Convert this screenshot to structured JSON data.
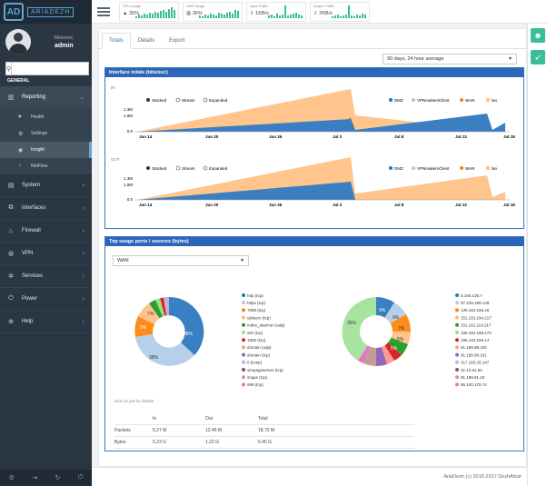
{
  "app": {
    "logo_letters": "AD",
    "logo_text": "ARIADEZH"
  },
  "user": {
    "welcome": "Welcome,",
    "name": "admin"
  },
  "search": {
    "placeholder": "",
    "value": ""
  },
  "sidebar": {
    "section": "GENERAL",
    "items": [
      {
        "label": "Reporting",
        "icon": "chart-icon",
        "chev": "⌄"
      },
      {
        "label": "System",
        "icon": "server-icon",
        "chev": "›"
      },
      {
        "label": "Interfaces",
        "icon": "network-icon",
        "chev": "›"
      },
      {
        "label": "Firewall",
        "icon": "fire-icon",
        "chev": "›"
      },
      {
        "label": "VPN",
        "icon": "globe-icon",
        "chev": "›"
      },
      {
        "label": "Services",
        "icon": "gears-icon",
        "chev": "›"
      },
      {
        "label": "Power",
        "icon": "plug-icon",
        "chev": "›"
      },
      {
        "label": "Help",
        "icon": "lifebuoy-icon",
        "chev": "›"
      }
    ],
    "subitems": [
      {
        "label": "Health"
      },
      {
        "label": "Settings"
      },
      {
        "label": "Insight"
      },
      {
        "label": "NetFlow"
      }
    ]
  },
  "top_stats": [
    {
      "title": "CPU Usage",
      "value": "35%",
      "bars": [
        2,
        4,
        3,
        5,
        4,
        6,
        5,
        7,
        6,
        8,
        9,
        7,
        10,
        12,
        9
      ]
    },
    {
      "title": "RAM Usage",
      "value": "36%",
      "bars": [
        3,
        2,
        4,
        3,
        5,
        4,
        3,
        6,
        5,
        4,
        6,
        7,
        5,
        9,
        8
      ]
    },
    {
      "title": "Input Traffic",
      "value": "1KB/s",
      "bars": [
        3,
        4,
        2,
        5,
        3,
        4,
        14,
        3,
        4,
        5,
        6,
        4,
        3
      ]
    },
    {
      "title": "Output Traffic",
      "value": "2KB/s",
      "bars": [
        2,
        3,
        4,
        2,
        3,
        4,
        14,
        3,
        2,
        4,
        3,
        5,
        4
      ]
    }
  ],
  "tabs": [
    "Totals",
    "Details",
    "Export"
  ],
  "period": {
    "selected": "90 days, 24 hour average"
  },
  "interface_panel": {
    "title": "Interface totals (bits/sec)",
    "in_label": "IN",
    "out_label": "OUT",
    "modes": [
      "Stacked",
      "Stream",
      "Expanded"
    ],
    "legend": [
      {
        "name": "DMZ",
        "color": "#1f77b4"
      },
      {
        "name": "VPNmakersClient",
        "color": "#aec7e8"
      },
      {
        "name": "WAN",
        "color": "#ff7f0e"
      },
      {
        "name": "lan",
        "color": "#ffbb78"
      }
    ],
    "yticks_in": [
      "1.3M",
      "1.0M",
      "0.0"
    ],
    "yticks_out": [
      "1.3M",
      "1.0M",
      "0.0"
    ],
    "xticks": [
      "Jun 14",
      "Jun 20",
      "Jun 26",
      "Jul 2",
      "Jul 8",
      "Jul 13",
      "Jul 18"
    ]
  },
  "top_panel": {
    "title": "Top usage ports / sources (bytes)",
    "select": "WAN",
    "hint": "click on pie for details",
    "ports": [
      {
        "name": "http (tcp)",
        "color": "#1f77b4"
      },
      {
        "name": "https (tcp)",
        "color": "#aec7e8"
      },
      {
        "name": "7095 (tcp)",
        "color": "#ff7f0e"
      },
      {
        "name": "ulelserv (tcp)",
        "color": "#ffbb78"
      },
      {
        "name": "mdbs_daemon (udp)",
        "color": "#2ca02c"
      },
      {
        "name": "ssh (tcp)",
        "color": "#98df8a"
      },
      {
        "name": "1900 (tcp)",
        "color": "#d62728"
      },
      {
        "name": "domain (udp)",
        "color": "#ff9896"
      },
      {
        "name": "domain (tcp)",
        "color": "#9467bd"
      },
      {
        "name": "0 (icmp)",
        "color": "#c5b0d5"
      },
      {
        "name": "ximpageserver (tcp)",
        "color": "#8c564b"
      },
      {
        "name": "imaps (tcp)",
        "color": "#c49c94"
      },
      {
        "name": "659 (tcp)",
        "color": "#e377c2"
      }
    ],
    "sources": [
      {
        "name": "5.160.139.7",
        "color": "#1f77b4"
      },
      {
        "name": "67.229.159.149",
        "color": "#aec7e8"
      },
      {
        "name": "139.162.168.16",
        "color": "#ff7f0e"
      },
      {
        "name": "151.101.194.217",
        "color": "#ffbb78"
      },
      {
        "name": "151.101.114.217",
        "color": "#2ca02c"
      },
      {
        "name": "195.181.168.173",
        "color": "#98df8a"
      },
      {
        "name": "185.142.156.14",
        "color": "#d62728"
      },
      {
        "name": "91.189.88.152",
        "color": "#ff9896"
      },
      {
        "name": "91.189.88.161",
        "color": "#9467bd"
      },
      {
        "name": "217.160.25.147",
        "color": "#c5b0d5"
      },
      {
        "name": "31.13.81.52",
        "color": "#8c564b"
      },
      {
        "name": "91.189.91.23",
        "color": "#c49c94"
      },
      {
        "name": "95.100.170.74",
        "color": "#e377c2"
      }
    ],
    "ports_pie_labels": [
      "38%",
      "38%",
      "9%",
      "7%"
    ],
    "sources_pie_labels": [
      "9%",
      "9%",
      "7%",
      "5%",
      "5%",
      "35%"
    ],
    "totals_table": {
      "headers": [
        "",
        "In",
        "Out",
        "Total"
      ],
      "rows": [
        [
          "Packets",
          "5.27 M",
          "13.46 M",
          "18.72 M"
        ],
        [
          "Bytes",
          "5.23 G",
          "1.22 G",
          "6.45 G"
        ]
      ]
    }
  },
  "footer": {
    "text": "AriaDezh (c) 2015-2017 DezhAfzar"
  }
}
